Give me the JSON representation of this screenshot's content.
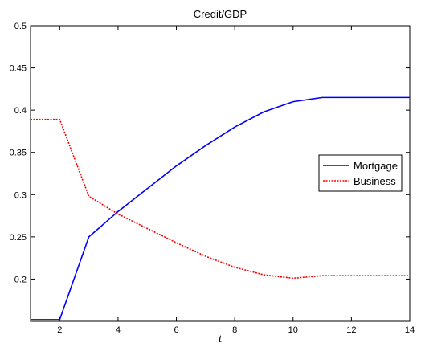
{
  "chart_data": {
    "type": "line",
    "title": "Credit/GDP",
    "xlabel": "t",
    "ylabel": "",
    "xlim": [
      1,
      14
    ],
    "ylim": [
      0.15,
      0.5
    ],
    "xticks": [
      2,
      4,
      6,
      8,
      10,
      12,
      14
    ],
    "yticks": [
      0.2,
      0.25,
      0.3,
      0.35,
      0.4,
      0.45,
      0.5
    ],
    "ytick_labels": [
      "0.2",
      "0.25",
      "0.3",
      "0.35",
      "0.4",
      "0.45",
      "0.5"
    ],
    "grid": false,
    "legend_position": "right",
    "x": [
      1,
      2,
      3,
      4,
      5,
      6,
      7,
      8,
      9,
      10,
      11,
      12,
      13,
      14
    ],
    "series": [
      {
        "name": "Mortgage",
        "color": "#0000ff",
        "style": "solid",
        "values": [
          0.152,
          0.152,
          0.25,
          0.28,
          0.307,
          0.334,
          0.358,
          0.38,
          0.398,
          0.41,
          0.415,
          0.415,
          0.415,
          0.415
        ]
      },
      {
        "name": "Business",
        "color": "#ff0000",
        "style": "dotted",
        "values": [
          0.389,
          0.389,
          0.298,
          0.277,
          0.26,
          0.243,
          0.227,
          0.214,
          0.205,
          0.201,
          0.204,
          0.204,
          0.204,
          0.204
        ]
      }
    ]
  }
}
